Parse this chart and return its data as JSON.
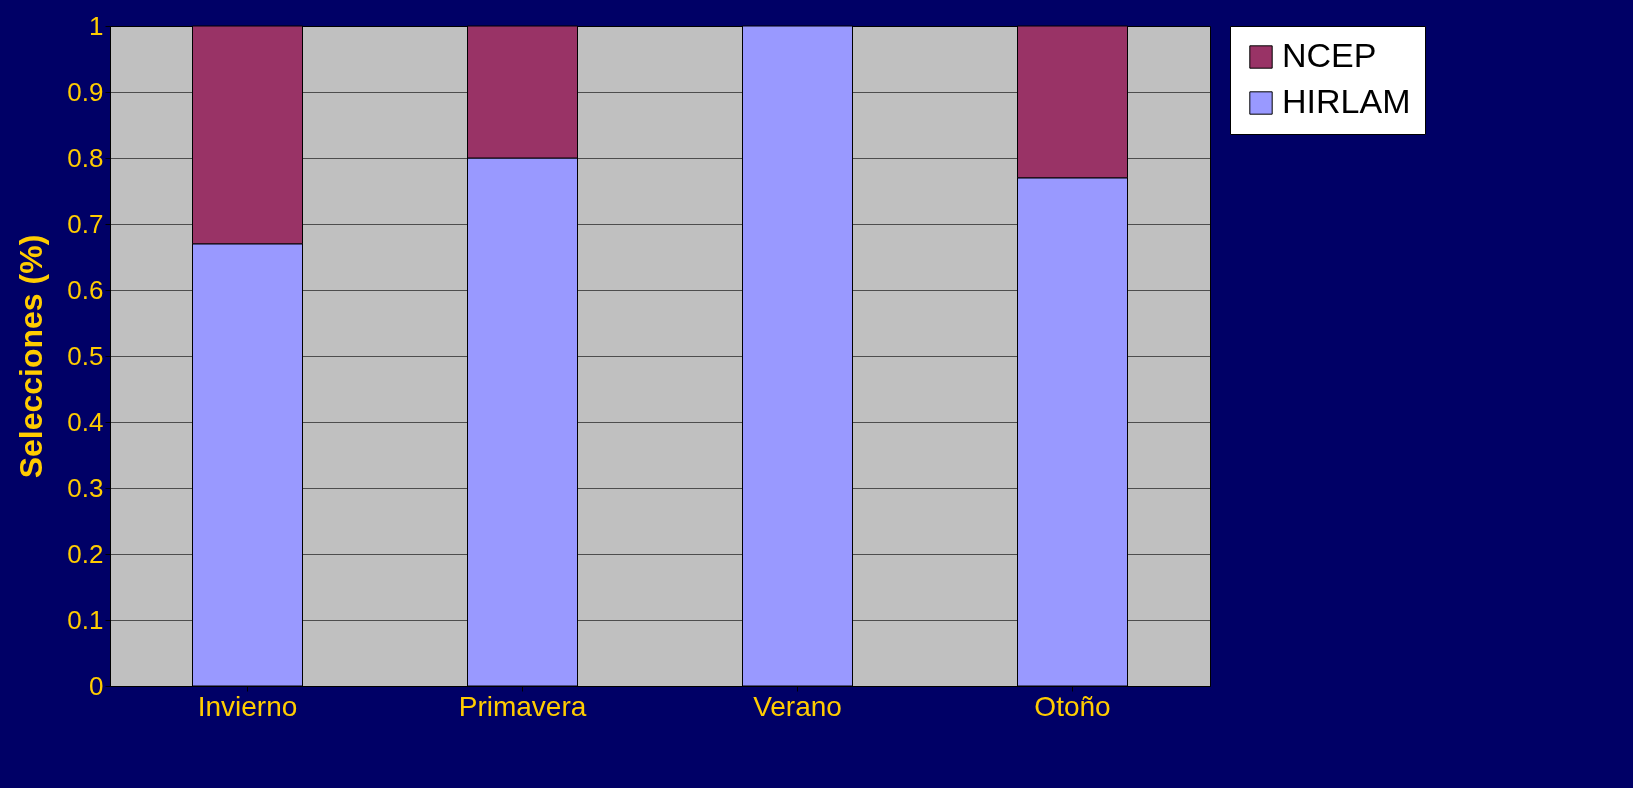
{
  "chart_data": {
    "type": "bar",
    "stacked": true,
    "ylabel": "Selecciones (%)",
    "categories": [
      "Invierno",
      "Primavera",
      "Verano",
      "Otoño"
    ],
    "series": [
      {
        "name": "HIRLAM",
        "color": "#9999ff",
        "values": [
          0.67,
          0.8,
          1.0,
          0.77
        ]
      },
      {
        "name": "NCEP",
        "color": "#993366",
        "values": [
          0.33,
          0.2,
          0,
          0.23
        ]
      }
    ],
    "ylim": [
      0,
      1
    ],
    "yticks": [
      0,
      0.1,
      0.2,
      0.3,
      0.4,
      0.5,
      0.6,
      0.7,
      0.8,
      0.9,
      1
    ],
    "grid": "y",
    "legend": "right"
  }
}
